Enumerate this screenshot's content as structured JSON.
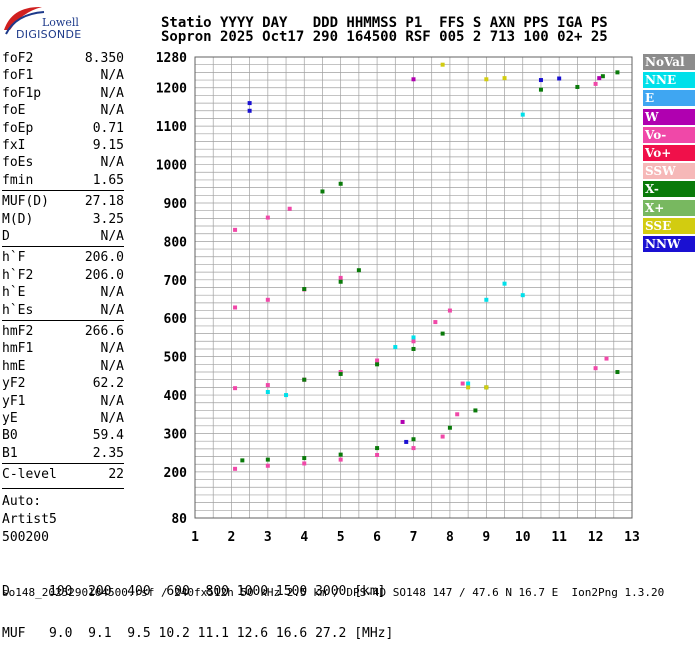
{
  "logo": {
    "line1": "Lowell",
    "line2": "DIGISONDE"
  },
  "header": {
    "labels": "Statio YYYY DAY   DDD HHMMSS P1  FFS S AXN PPS IGA PS",
    "values": "Sopron 2025 Oct17 290 164500 RSF 005 2 713 100 02+ 25"
  },
  "params": [
    {
      "name": "foF2",
      "value": "8.350"
    },
    {
      "name": "foF1",
      "value": "N/A"
    },
    {
      "name": "foF1p",
      "value": "N/A"
    },
    {
      "name": "foE",
      "value": "N/A"
    },
    {
      "name": "foEp",
      "value": "0.71"
    },
    {
      "name": "fxI",
      "value": "9.15"
    },
    {
      "name": "foEs",
      "value": "N/A"
    },
    {
      "name": "fmin",
      "value": "1.65"
    },
    {
      "name": "MUF(D)",
      "value": "27.18"
    },
    {
      "name": "M(D)",
      "value": "3.25"
    },
    {
      "name": "D",
      "value": "N/A"
    },
    {
      "name": "h`F",
      "value": "206.0"
    },
    {
      "name": "h`F2",
      "value": "206.0"
    },
    {
      "name": "h`E",
      "value": "N/A"
    },
    {
      "name": "h`Es",
      "value": "N/A"
    },
    {
      "name": "hmF2",
      "value": "266.6"
    },
    {
      "name": "hmF1",
      "value": "N/A"
    },
    {
      "name": "hmE",
      "value": "N/A"
    },
    {
      "name": "yF2",
      "value": "62.2"
    },
    {
      "name": "yF1",
      "value": "N/A"
    },
    {
      "name": "yE",
      "value": "N/A"
    },
    {
      "name": "B0",
      "value": "59.4"
    },
    {
      "name": "B1",
      "value": "2.35"
    },
    {
      "name": "C-level",
      "value": "22"
    }
  ],
  "auto_lines": [
    "Auto:",
    "Artist5",
    "500200"
  ],
  "legend": [
    {
      "label": "NoVal",
      "color": "#8c8c8c"
    },
    {
      "label": "NNE",
      "color": "#00e0ea"
    },
    {
      "label": "E",
      "color": "#3fa6f2"
    },
    {
      "label": "W",
      "color": "#b000b0"
    },
    {
      "label": "Vo-",
      "color": "#f048a8"
    },
    {
      "label": "Vo+",
      "color": "#f0104a"
    },
    {
      "label": "SSW",
      "color": "#f6b8b8"
    },
    {
      "label": "X-",
      "color": "#0a7a0a"
    },
    {
      "label": "X+",
      "color": "#78b860"
    },
    {
      "label": "SSE",
      "color": "#d2cc10"
    },
    {
      "label": "NNW",
      "color": "#1a10d2"
    }
  ],
  "dmuf": {
    "d_line": "D     100  200  400  600  800 1000 1500 3000 [km]",
    "muf_line": "MUF   9.0  9.1  9.5 10.2 11.1 12.6 16.6 27.2 [MHz]"
  },
  "footer": "so148_2025290164500.rsf / 240fx512h 50 kHz 2.5 km / DPS-4D SO148 147 / 47.6 N 16.7 E  Ion2Png 1.3.20",
  "chart_data": {
    "type": "scatter",
    "x_ticks": [
      1,
      2,
      3,
      4,
      5,
      6,
      7,
      8,
      9,
      10,
      11,
      12,
      13
    ],
    "y_ticks": [
      80,
      200,
      300,
      400,
      500,
      600,
      700,
      800,
      900,
      1000,
      1100,
      1200,
      1280
    ],
    "xlim": [
      1,
      13
    ],
    "ylim": [
      80,
      1280
    ],
    "grid": true,
    "legend_position": "right",
    "series": [
      {
        "name": "Vo-",
        "color": "#f048a8",
        "points": [
          [
            2.1,
            208
          ],
          [
            3,
            216
          ],
          [
            4,
            222
          ],
          [
            5,
            232
          ],
          [
            6,
            244
          ],
          [
            7,
            262
          ],
          [
            7.8,
            292
          ],
          [
            8.2,
            350
          ],
          [
            8.35,
            430
          ],
          [
            2.1,
            418
          ],
          [
            3,
            426
          ],
          [
            4,
            440
          ],
          [
            5,
            460
          ],
          [
            6,
            490
          ],
          [
            7,
            540
          ],
          [
            7.6,
            590
          ],
          [
            8,
            620
          ],
          [
            2.1,
            628
          ],
          [
            3,
            648
          ],
          [
            4,
            675
          ],
          [
            5,
            705
          ],
          [
            2.1,
            830
          ],
          [
            3,
            862
          ],
          [
            3.6,
            885
          ],
          [
            12,
            1210
          ],
          [
            12,
            470
          ],
          [
            12.3,
            495
          ]
        ]
      },
      {
        "name": "X-",
        "color": "#0a7a0a",
        "points": [
          [
            2.3,
            230
          ],
          [
            3,
            232
          ],
          [
            4,
            236
          ],
          [
            5,
            245
          ],
          [
            6,
            262
          ],
          [
            7,
            285
          ],
          [
            8,
            315
          ],
          [
            8.7,
            360
          ],
          [
            9,
            420
          ],
          [
            4,
            440
          ],
          [
            5,
            455
          ],
          [
            6,
            480
          ],
          [
            7,
            520
          ],
          [
            7.8,
            560
          ],
          [
            4,
            676
          ],
          [
            5,
            695
          ],
          [
            5.5,
            725
          ],
          [
            4.5,
            930
          ],
          [
            5,
            950
          ],
          [
            12.2,
            1230
          ],
          [
            12.6,
            1240
          ],
          [
            12.6,
            460
          ],
          [
            10.5,
            1195
          ],
          [
            11.5,
            1202
          ]
        ]
      },
      {
        "name": "NNE",
        "color": "#00e0ea",
        "points": [
          [
            9,
            648
          ],
          [
            9.5,
            690
          ],
          [
            10,
            660
          ],
          [
            3,
            408
          ],
          [
            3.5,
            400
          ],
          [
            8.5,
            430
          ],
          [
            10,
            1130
          ],
          [
            6.5,
            525
          ],
          [
            7,
            550
          ]
        ]
      },
      {
        "name": "NNW",
        "color": "#1a10d2",
        "points": [
          [
            2.5,
            1160
          ],
          [
            2.5,
            1140
          ],
          [
            10.5,
            1220
          ],
          [
            11,
            1224
          ],
          [
            6.8,
            278
          ]
        ]
      },
      {
        "name": "SSE",
        "color": "#d2cc10",
        "points": [
          [
            9,
            1222
          ],
          [
            9.5,
            1225
          ],
          [
            7.8,
            1260
          ],
          [
            8.5,
            420
          ],
          [
            9,
            420
          ]
        ]
      },
      {
        "name": "W",
        "color": "#b000b0",
        "points": [
          [
            6.7,
            330
          ],
          [
            7,
            1222
          ],
          [
            12.1,
            1225
          ]
        ]
      }
    ]
  }
}
